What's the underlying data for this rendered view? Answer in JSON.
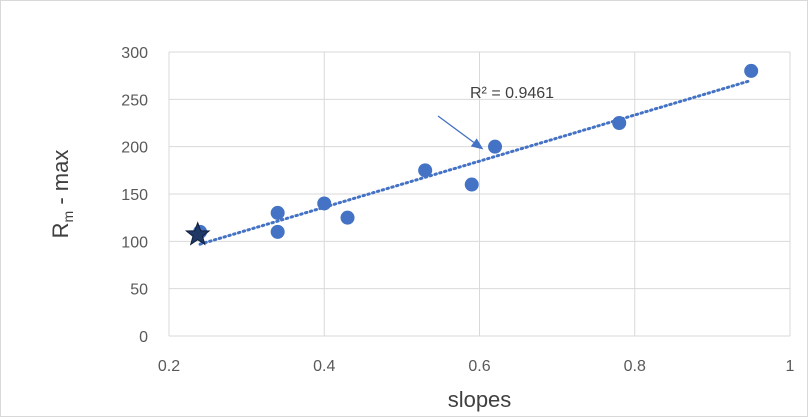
{
  "chart_data": {
    "type": "scatter",
    "title": "",
    "xlabel": "slopes",
    "ylabel": {
      "main": "R",
      "sub": "m",
      "rest": " - max"
    },
    "xlim": [
      0.2,
      1
    ],
    "ylim": [
      0,
      300
    ],
    "x_ticks": [
      0.2,
      0.4,
      0.6,
      0.8,
      1
    ],
    "x_tick_labels": [
      "0.2",
      "0.4",
      "0.6",
      "0.8",
      "1"
    ],
    "y_ticks": [
      0,
      50,
      100,
      150,
      200,
      250,
      300
    ],
    "y_tick_labels": [
      "0",
      "50",
      "100",
      "150",
      "200",
      "250",
      "300"
    ],
    "grid": true,
    "legend": "none",
    "series": [
      {
        "marker": "circle",
        "color": "#4472C4",
        "x": [
          0.24,
          0.34,
          0.34,
          0.4,
          0.43,
          0.53,
          0.59,
          0.62,
          0.78,
          0.95
        ],
        "y": [
          110,
          130,
          110,
          140,
          125,
          175,
          160,
          200,
          225,
          280
        ]
      }
    ],
    "highlight_point": {
      "x": 0.237,
      "y": 107,
      "marker": "star",
      "color": "#1F3864"
    },
    "trendline": {
      "type": "linear",
      "style": "dotted",
      "color": "#4472C4",
      "x": [
        0.24,
        0.95
      ],
      "y": [
        97,
        270
      ]
    },
    "annotation": {
      "text": "R² = 0.9461",
      "arrow_to": {
        "x": 0.605,
        "y": 197
      }
    }
  }
}
